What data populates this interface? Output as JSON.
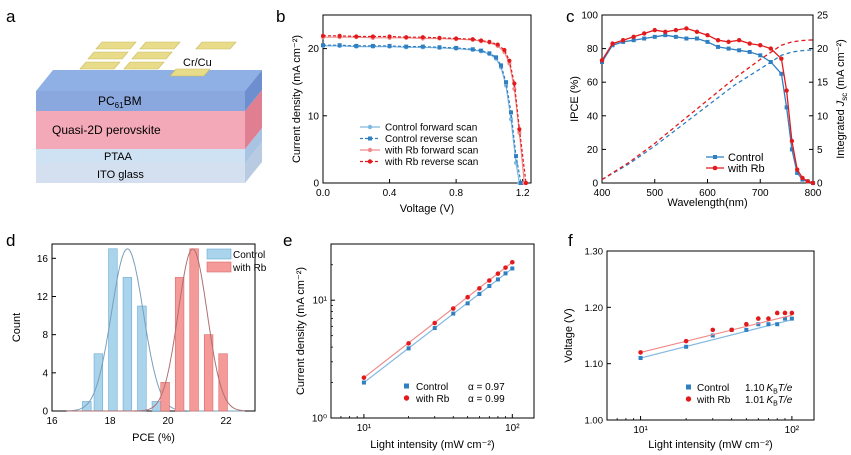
{
  "panels": {
    "a": {
      "letter": "a",
      "layers": [
        "Cr/Cu",
        "PC61BM",
        "Quasi-2D perovskite",
        "PTAA",
        "ITO glass"
      ],
      "pcbm_main": "PC",
      "pcbm_sub": "61",
      "pcbm_tail": "BM"
    },
    "b": {
      "letter": "b"
    },
    "c": {
      "letter": "c"
    },
    "d": {
      "letter": "d"
    },
    "e": {
      "letter": "e"
    },
    "f": {
      "letter": "f"
    }
  },
  "colors": {
    "control": "#2f7fc1",
    "control_light": "#7fb8e2",
    "rb": "#e31a1c",
    "rb_light": "#f08a8a",
    "hist_control": "#a9d4ec",
    "hist_rb": "#f49a99"
  },
  "chart_data": [
    {
      "id": "b",
      "type": "line",
      "xlabel": "Voltage (V)",
      "ylabel": "Current density (mA cm⁻²)",
      "xlim": [
        0,
        1.25
      ],
      "ylim": [
        0,
        25
      ],
      "xticks": [
        "0.0",
        "0.4",
        "0.8",
        "1.2"
      ],
      "xtick_values": [
        0,
        0.4,
        0.8,
        1.2
      ],
      "yticks": [
        "0",
        "10",
        "20"
      ],
      "ytick_values": [
        0,
        10,
        20
      ],
      "legend_position": "bottom-right",
      "series": [
        {
          "name": "Control forward scan",
          "style": "control_light_solid",
          "x": [
            0,
            0.1,
            0.2,
            0.3,
            0.4,
            0.5,
            0.6,
            0.7,
            0.8,
            0.9,
            0.95,
            1.0,
            1.04,
            1.07,
            1.1,
            1.13,
            1.16,
            1.18
          ],
          "y": [
            20.4,
            20.4,
            20.3,
            20.3,
            20.3,
            20.2,
            20.2,
            20.1,
            20.0,
            19.8,
            19.6,
            19.2,
            18.5,
            17.2,
            14.5,
            9.5,
            3.0,
            0
          ]
        },
        {
          "name": "Control reverse scan",
          "style": "control_dashed",
          "x": [
            0,
            0.1,
            0.2,
            0.3,
            0.4,
            0.5,
            0.6,
            0.7,
            0.8,
            0.9,
            0.95,
            1.0,
            1.04,
            1.07,
            1.1,
            1.13,
            1.16,
            1.19
          ],
          "y": [
            20.5,
            20.5,
            20.4,
            20.4,
            20.4,
            20.3,
            20.3,
            20.2,
            20.1,
            19.9,
            19.7,
            19.3,
            18.7,
            17.5,
            15.0,
            10.5,
            4.0,
            0
          ]
        },
        {
          "name": "with Rb forward scan",
          "style": "rb_light_solid",
          "x": [
            0,
            0.1,
            0.2,
            0.3,
            0.4,
            0.5,
            0.6,
            0.7,
            0.8,
            0.9,
            0.95,
            1.0,
            1.05,
            1.09,
            1.12,
            1.15,
            1.18,
            1.21
          ],
          "y": [
            21.7,
            21.7,
            21.7,
            21.6,
            21.6,
            21.6,
            21.5,
            21.5,
            21.4,
            21.3,
            21.1,
            20.9,
            20.4,
            19.5,
            17.8,
            14.0,
            7.5,
            0
          ]
        },
        {
          "name": "with Rb reverse scan",
          "style": "rb_dashed",
          "x": [
            0,
            0.1,
            0.2,
            0.3,
            0.4,
            0.5,
            0.6,
            0.7,
            0.8,
            0.9,
            0.95,
            1.0,
            1.05,
            1.09,
            1.12,
            1.15,
            1.18,
            1.22
          ],
          "y": [
            21.9,
            21.9,
            21.8,
            21.8,
            21.8,
            21.7,
            21.7,
            21.6,
            21.5,
            21.4,
            21.2,
            21.0,
            20.6,
            19.8,
            18.2,
            14.8,
            8.0,
            0
          ]
        }
      ]
    },
    {
      "id": "c",
      "type": "line",
      "xlabel": "Wavelength(nm)",
      "ylabel": "IPCE (%)",
      "ylabel_right_main": "Integrated ",
      "ylabel_right_italic": "J",
      "ylabel_right_sub": "sc",
      "ylabel_right_tail": " (mA cm⁻²)",
      "xlim": [
        400,
        800
      ],
      "ylim": [
        0,
        100
      ],
      "y2lim": [
        0,
        25
      ],
      "xticks": [
        "400",
        "500",
        "600",
        "700",
        "800"
      ],
      "xtick_values": [
        400,
        500,
        600,
        700,
        800
      ],
      "yticks": [
        "0",
        "20",
        "40",
        "60",
        "80",
        "100"
      ],
      "ytick_values": [
        0,
        20,
        40,
        60,
        80,
        100
      ],
      "y2ticks": [
        "0",
        "5",
        "10",
        "15",
        "20",
        "25"
      ],
      "y2tick_values": [
        0,
        5,
        10,
        15,
        20,
        25
      ],
      "legend_position": "bottom-right",
      "series": [
        {
          "name": "Control",
          "axis": "left",
          "style": "control_marker",
          "x": [
            400,
            420,
            440,
            460,
            480,
            500,
            520,
            540,
            560,
            580,
            600,
            620,
            640,
            660,
            680,
            700,
            720,
            740,
            750,
            760,
            770,
            780,
            790,
            800
          ],
          "y": [
            72,
            82,
            84,
            85,
            86,
            87,
            88,
            87,
            86,
            86,
            84,
            81,
            80,
            79,
            78,
            76,
            72,
            65,
            45,
            20,
            6,
            2,
            1,
            0
          ]
        },
        {
          "name": "with Rb",
          "axis": "left",
          "style": "rb_marker",
          "x": [
            400,
            420,
            440,
            460,
            480,
            500,
            520,
            540,
            560,
            580,
            600,
            620,
            640,
            660,
            680,
            700,
            720,
            740,
            750,
            760,
            770,
            780,
            790,
            800
          ],
          "y": [
            73,
            83,
            85,
            87,
            89,
            91,
            90,
            91,
            92,
            90,
            88,
            85,
            84,
            85,
            83,
            82,
            80,
            74,
            55,
            25,
            8,
            3,
            1,
            0
          ]
        },
        {
          "name": "",
          "axis": "right",
          "style": "control_dashed",
          "x": [
            400,
            450,
            500,
            550,
            600,
            650,
            700,
            740,
            760,
            780,
            800
          ],
          "y": [
            0.5,
            2.8,
            5.5,
            8.5,
            11.5,
            14.5,
            17.0,
            19.0,
            19.5,
            19.7,
            19.8
          ]
        },
        {
          "name": "",
          "axis": "right",
          "style": "rb_dashed",
          "x": [
            400,
            450,
            500,
            550,
            600,
            650,
            700,
            740,
            760,
            780,
            800
          ],
          "y": [
            0.5,
            3.0,
            5.9,
            9.1,
            12.3,
            15.5,
            18.4,
            20.5,
            21.0,
            21.2,
            21.3
          ]
        }
      ]
    },
    {
      "id": "d",
      "type": "bar",
      "xlabel": "PCE (%)",
      "ylabel": "Count",
      "xlim": [
        16,
        23
      ],
      "ylim": [
        0,
        17.5
      ],
      "xticks": [
        "16",
        "18",
        "20",
        "22"
      ],
      "xtick_values": [
        16,
        18,
        20,
        22
      ],
      "yticks": [
        "0",
        "4",
        "8",
        "12",
        "16"
      ],
      "ytick_values": [
        0,
        4,
        8,
        12,
        16
      ],
      "bin_width": 0.3,
      "legend_position": "top-right",
      "series": [
        {
          "name": "Control",
          "centers": [
            17.2,
            17.6,
            18.1,
            18.6,
            19.1,
            19.6
          ],
          "values": [
            1,
            6,
            17,
            14,
            11,
            1
          ],
          "fit_mean": 18.6,
          "fit_sigma": 0.55,
          "fit_peak": 17
        },
        {
          "name": "with Rb",
          "centers": [
            19.9,
            20.4,
            20.9,
            21.4,
            21.9
          ],
          "values": [
            3,
            14,
            17,
            8,
            6
          ],
          "fit_mean": 20.85,
          "fit_sigma": 0.5,
          "fit_peak": 17
        }
      ]
    },
    {
      "id": "e",
      "type": "scatter",
      "xlabel": "Light intensity (mW cm⁻²)",
      "ylabel": "Current density (mA cm⁻²)",
      "xscale": "log",
      "yscale": "log",
      "xlim": [
        6,
        140
      ],
      "ylim": [
        1,
        30
      ],
      "xticks": [
        "10¹",
        "10²"
      ],
      "xtick_values": [
        10,
        100
      ],
      "yticks": [
        "10⁰",
        "10¹"
      ],
      "ytick_values": [
        1,
        10
      ],
      "legend_position": "bottom-right",
      "series": [
        {
          "name": "Control",
          "annotation": "α = 0.97",
          "x": [
            10,
            20,
            30,
            40,
            50,
            60,
            70,
            80,
            90,
            100
          ],
          "y": [
            2.0,
            3.9,
            5.8,
            7.7,
            9.4,
            11.3,
            13.2,
            15.0,
            16.9,
            18.6
          ]
        },
        {
          "name": "with Rb",
          "annotation": "α = 0.99",
          "x": [
            10,
            20,
            30,
            40,
            50,
            60,
            70,
            80,
            90,
            100
          ],
          "y": [
            2.2,
            4.3,
            6.4,
            8.5,
            10.6,
            12.6,
            14.7,
            16.8,
            18.9,
            21.0
          ]
        }
      ]
    },
    {
      "id": "f",
      "type": "scatter",
      "xlabel": "Light intensity (mW cm⁻²)",
      "ylabel": "Voltage (V)",
      "xscale": "log",
      "xlim": [
        6,
        140
      ],
      "ylim": [
        1.0,
        1.3
      ],
      "xticks": [
        "10¹",
        "10²"
      ],
      "xtick_values": [
        10,
        100
      ],
      "yticks": [
        "1.00",
        "1.10",
        "1.20",
        "1.30"
      ],
      "ytick_values": [
        1.0,
        1.1,
        1.2,
        1.3
      ],
      "legend_position": "bottom-right",
      "series": [
        {
          "name": "Control",
          "ann_main": "1.10",
          "ann_k": "K",
          "ann_sub": "B",
          "ann_tail": "T/e",
          "x": [
            10,
            20,
            30,
            40,
            50,
            60,
            70,
            80,
            90,
            100
          ],
          "y": [
            1.11,
            1.13,
            1.15,
            1.16,
            1.16,
            1.17,
            1.17,
            1.17,
            1.18,
            1.18
          ]
        },
        {
          "name": "with Rb",
          "ann_main": "1.01",
          "ann_k": "K",
          "ann_sub": "B",
          "ann_tail": "T/e",
          "x": [
            10,
            20,
            30,
            40,
            50,
            60,
            70,
            80,
            90,
            100
          ],
          "y": [
            1.12,
            1.14,
            1.16,
            1.16,
            1.17,
            1.18,
            1.18,
            1.19,
            1.19,
            1.19
          ]
        }
      ]
    }
  ]
}
